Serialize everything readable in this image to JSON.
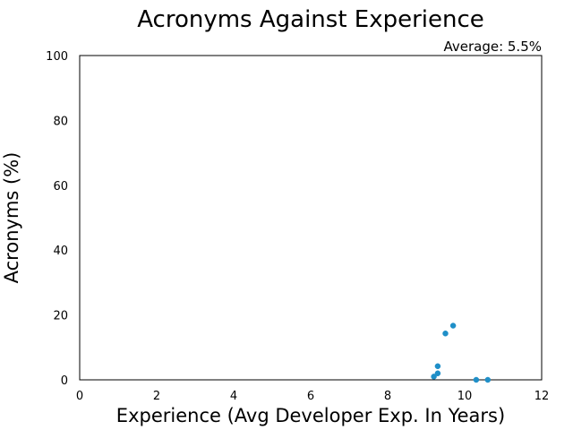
{
  "chart_data": {
    "type": "scatter",
    "title": "Acronyms Against Experience",
    "xlabel": "Experience (Avg Developer Exp. In Years)",
    "ylabel": "Acronyms (%)",
    "annotation": "Average: 5.5%",
    "xlim": [
      0,
      12
    ],
    "ylim": [
      0,
      100
    ],
    "xticks": [
      "0",
      "2",
      "4",
      "6",
      "8",
      "10",
      "12"
    ],
    "yticks": [
      "0",
      "20",
      "40",
      "60",
      "80",
      "100"
    ],
    "grid": false,
    "legend": "none",
    "marker_color": "#1f8fc8",
    "points": [
      {
        "x": 9.2,
        "y": 1
      },
      {
        "x": 9.3,
        "y": 2
      },
      {
        "x": 9.3,
        "y": 4.2
      },
      {
        "x": 9.5,
        "y": 14.3
      },
      {
        "x": 9.7,
        "y": 16.7
      },
      {
        "x": 10.3,
        "y": 0
      },
      {
        "x": 10.6,
        "y": 0
      }
    ]
  }
}
